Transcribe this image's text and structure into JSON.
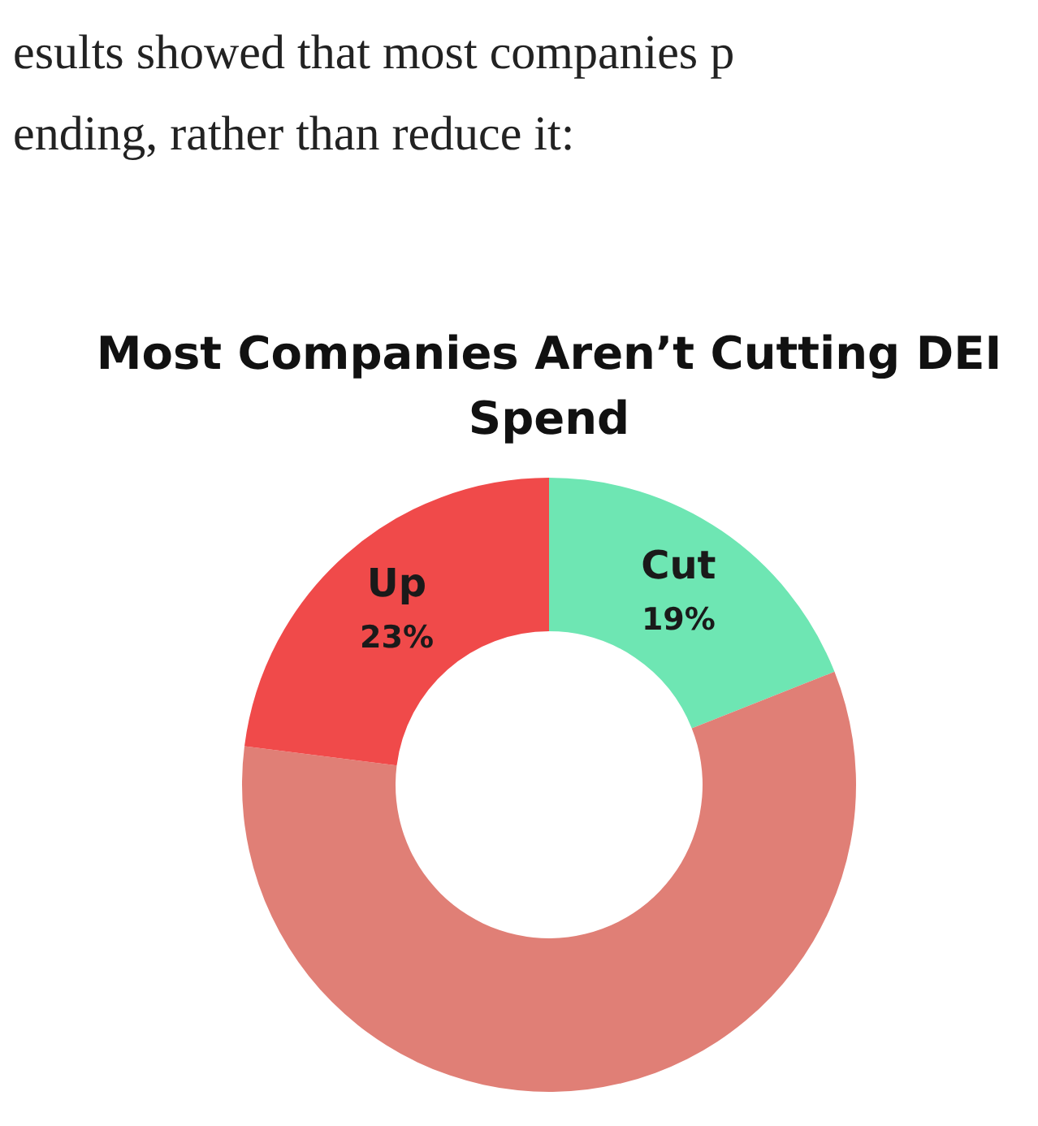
{
  "chart_data": {
    "type": "donut",
    "title": "Most Companies Aren’t Cutting DEI  Spend",
    "annotations": [
      "esults showed that most companies p",
      "ending, rather than reduce it:"
    ],
    "categories": [
      "Cut",
      null,
      "Up"
    ],
    "values": [
      19,
      58,
      23
    ],
    "colors": [
      "#6ee6b3",
      "#e07f76",
      "#f04a4a"
    ],
    "value_labels": [
      "19%",
      null,
      "23%"
    ],
    "legend": false
  }
}
